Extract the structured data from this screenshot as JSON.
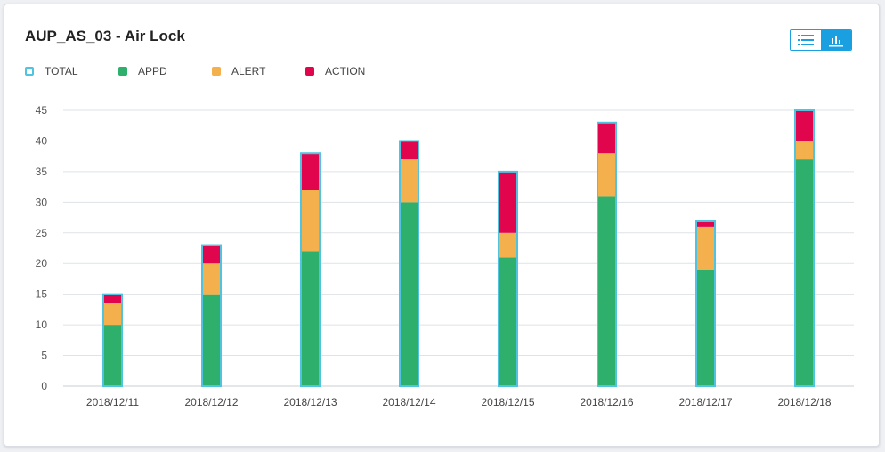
{
  "card": {
    "title": "AUP_AS_03 - Air Lock"
  },
  "toolbar": {
    "list_view_icon": "list-icon",
    "chart_view_icon": "bar-chart-icon"
  },
  "legend": [
    {
      "label": "TOTAL",
      "color": "#4fc3e0",
      "style": "outline"
    },
    {
      "label": "APPD",
      "color": "#2eaf6b",
      "style": "fill"
    },
    {
      "label": "ALERT",
      "color": "#f5b04e",
      "style": "fill"
    },
    {
      "label": "ACTION",
      "color": "#e1054d",
      "style": "fill"
    }
  ],
  "chart_data": {
    "type": "bar",
    "stacked": true,
    "categories": [
      "2018/12/11",
      "2018/12/12",
      "2018/12/13",
      "2018/12/14",
      "2018/12/15",
      "2018/12/16",
      "2018/12/17",
      "2018/12/18"
    ],
    "series": [
      {
        "name": "APPD",
        "color": "#2eaf6b",
        "values": [
          10,
          15,
          22,
          30,
          21,
          31,
          19,
          37
        ]
      },
      {
        "name": "ALERT",
        "color": "#f5b04e",
        "values": [
          3.5,
          5,
          10,
          7,
          4,
          7,
          7,
          3
        ]
      },
      {
        "name": "ACTION",
        "color": "#e1054d",
        "values": [
          1.5,
          3,
          6,
          3,
          10,
          5,
          1,
          5
        ]
      }
    ],
    "total": {
      "name": "TOTAL",
      "color": "#4fc3e0",
      "values": [
        15,
        23,
        38,
        40,
        35,
        43,
        27,
        45
      ]
    },
    "ylim": [
      0,
      45
    ],
    "yticks": [
      0,
      5,
      10,
      15,
      20,
      25,
      30,
      35,
      40,
      45
    ],
    "grid": true,
    "legend_position": "top-left"
  }
}
